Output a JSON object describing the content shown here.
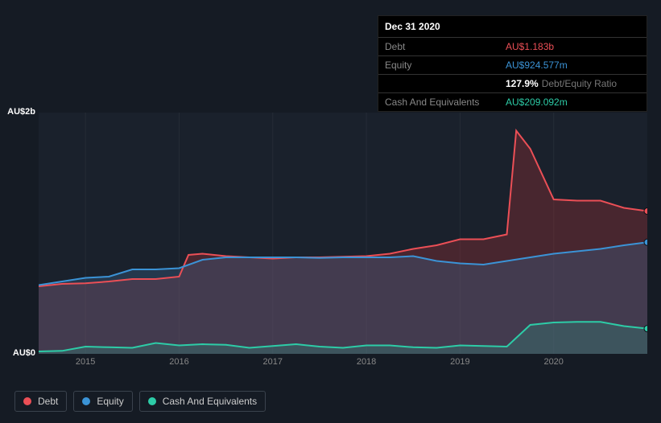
{
  "tooltip": {
    "date": "Dec 31 2020",
    "rows": [
      {
        "label": "Debt",
        "value": "AU$1.183b",
        "color": "#eb4f56"
      },
      {
        "label": "Equity",
        "value": "AU$924.577m",
        "color": "#3b93d6"
      },
      {
        "label": "",
        "ratio_value": "127.9%",
        "ratio_label": "Debt/Equity Ratio",
        "is_ratio": true
      },
      {
        "label": "Cash And Equivalents",
        "value": "AU$209.092m",
        "color": "#2dcca7"
      }
    ]
  },
  "chart": {
    "type": "area",
    "background_color": "#151b24",
    "plot_background": "#1a212c",
    "grid_color": "#252c36",
    "ylim": [
      0,
      2000
    ],
    "y_ticks": [
      {
        "v": 2000,
        "label": "AU$2b"
      },
      {
        "v": 0,
        "label": "AU$0"
      }
    ],
    "x_domain": [
      2014.5,
      2021.0
    ],
    "x_ticks": [
      2015,
      2016,
      2017,
      2018,
      2019,
      2020
    ],
    "series": [
      {
        "name": "Debt",
        "color": "#eb4f56",
        "fill": "rgba(160,50,55,0.35)",
        "data": [
          [
            2014.5,
            560
          ],
          [
            2014.75,
            580
          ],
          [
            2015.0,
            585
          ],
          [
            2015.25,
            600
          ],
          [
            2015.5,
            620
          ],
          [
            2015.75,
            620
          ],
          [
            2016.0,
            640
          ],
          [
            2016.1,
            820
          ],
          [
            2016.25,
            830
          ],
          [
            2016.5,
            810
          ],
          [
            2016.75,
            800
          ],
          [
            2017.0,
            790
          ],
          [
            2017.25,
            800
          ],
          [
            2017.5,
            800
          ],
          [
            2017.75,
            805
          ],
          [
            2018.0,
            810
          ],
          [
            2018.25,
            830
          ],
          [
            2018.5,
            870
          ],
          [
            2018.75,
            900
          ],
          [
            2019.0,
            950
          ],
          [
            2019.25,
            950
          ],
          [
            2019.5,
            990
          ],
          [
            2019.6,
            1850
          ],
          [
            2019.75,
            1700
          ],
          [
            2020.0,
            1280
          ],
          [
            2020.25,
            1270
          ],
          [
            2020.5,
            1270
          ],
          [
            2020.75,
            1210
          ],
          [
            2021.0,
            1183
          ]
        ]
      },
      {
        "name": "Equity",
        "color": "#3b93d6",
        "fill": "rgba(59,100,140,0.35)",
        "data": [
          [
            2014.5,
            570
          ],
          [
            2014.75,
            600
          ],
          [
            2015.0,
            630
          ],
          [
            2015.25,
            640
          ],
          [
            2015.5,
            700
          ],
          [
            2015.75,
            700
          ],
          [
            2016.0,
            710
          ],
          [
            2016.25,
            780
          ],
          [
            2016.5,
            800
          ],
          [
            2016.75,
            800
          ],
          [
            2017.0,
            800
          ],
          [
            2017.25,
            800
          ],
          [
            2017.5,
            795
          ],
          [
            2017.75,
            800
          ],
          [
            2018.0,
            800
          ],
          [
            2018.25,
            800
          ],
          [
            2018.5,
            810
          ],
          [
            2018.75,
            770
          ],
          [
            2019.0,
            750
          ],
          [
            2019.25,
            740
          ],
          [
            2019.5,
            770
          ],
          [
            2019.75,
            800
          ],
          [
            2020.0,
            830
          ],
          [
            2020.25,
            850
          ],
          [
            2020.5,
            870
          ],
          [
            2020.75,
            900
          ],
          [
            2021.0,
            925
          ]
        ]
      },
      {
        "name": "Cash And Equivalents",
        "color": "#2dcca7",
        "fill": "rgba(45,160,135,0.25)",
        "data": [
          [
            2014.5,
            20
          ],
          [
            2014.75,
            25
          ],
          [
            2015.0,
            60
          ],
          [
            2015.25,
            55
          ],
          [
            2015.5,
            50
          ],
          [
            2015.75,
            90
          ],
          [
            2016.0,
            70
          ],
          [
            2016.25,
            80
          ],
          [
            2016.5,
            75
          ],
          [
            2016.75,
            50
          ],
          [
            2017.0,
            65
          ],
          [
            2017.25,
            80
          ],
          [
            2017.5,
            60
          ],
          [
            2017.75,
            50
          ],
          [
            2018.0,
            70
          ],
          [
            2018.25,
            70
          ],
          [
            2018.5,
            55
          ],
          [
            2018.75,
            50
          ],
          [
            2019.0,
            70
          ],
          [
            2019.25,
            65
          ],
          [
            2019.5,
            60
          ],
          [
            2019.75,
            240
          ],
          [
            2020.0,
            260
          ],
          [
            2020.25,
            265
          ],
          [
            2020.5,
            265
          ],
          [
            2020.75,
            230
          ],
          [
            2021.0,
            209
          ]
        ]
      }
    ]
  },
  "legend": [
    {
      "label": "Debt",
      "color": "#eb4f56"
    },
    {
      "label": "Equity",
      "color": "#3b93d6"
    },
    {
      "label": "Cash And Equivalents",
      "color": "#2dcca7"
    }
  ]
}
